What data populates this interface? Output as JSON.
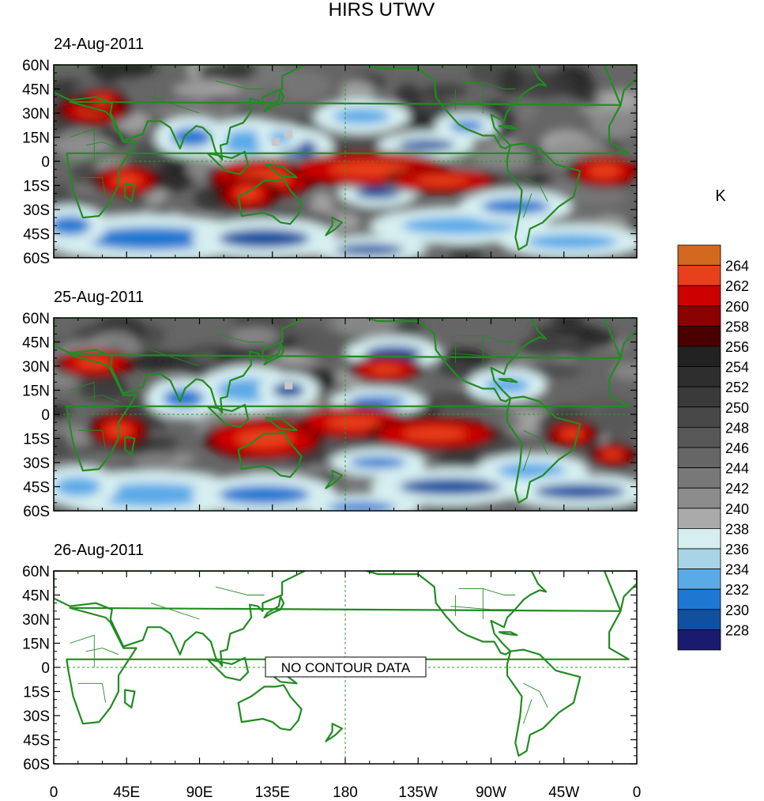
{
  "title": "HIRS UTWV",
  "panels": [
    {
      "date": "24-Aug-2011",
      "has_data": true
    },
    {
      "date": "25-Aug-2011",
      "has_data": true
    },
    {
      "date": "26-Aug-2011",
      "has_data": false,
      "no_data_text": "NO CONTOUR DATA"
    }
  ],
  "lat_ticks": [
    "60N",
    "45N",
    "30N",
    "15N",
    "0",
    "15S",
    "30S",
    "45S",
    "60S"
  ],
  "lon_ticks": [
    "0",
    "45E",
    "90E",
    "135E",
    "180",
    "135W",
    "90W",
    "45W",
    "0"
  ],
  "colorbar": {
    "unit": "K",
    "labels": [
      "264",
      "262",
      "260",
      "258",
      "256",
      "254",
      "252",
      "250",
      "248",
      "246",
      "244",
      "242",
      "240",
      "238",
      "236",
      "234",
      "232",
      "230",
      "228"
    ],
    "colors": [
      "#d2691e",
      "#e8401c",
      "#cc0000",
      "#8b0000",
      "#4a0000",
      "#222222",
      "#2e2e2e",
      "#3a3a3a",
      "#484848",
      "#575757",
      "#666666",
      "#787878",
      "#8c8c8c",
      "#aaaaaa",
      "#d6eef0",
      "#a8d4e6",
      "#5aaae8",
      "#1e78d2",
      "#1050a0",
      "#1a1a6e"
    ]
  },
  "map_colors": {
    "coast": "#228b22",
    "grid": "#2a9a2a"
  }
}
